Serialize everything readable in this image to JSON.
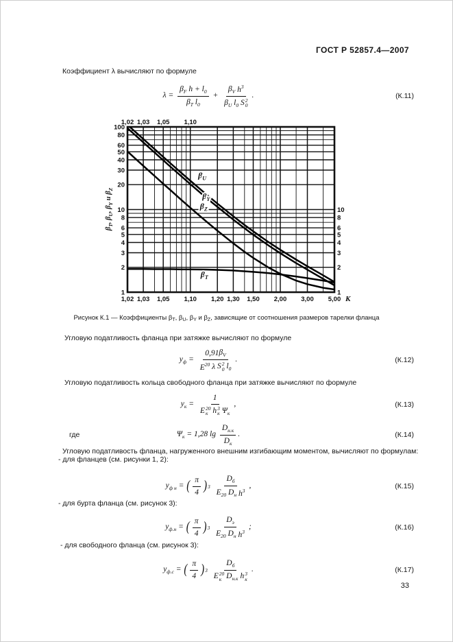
{
  "page": {
    "header": "ГОСТ Р 52857.4—2007",
    "number": "33"
  },
  "paragraphs": {
    "p1": "Коэффициент λ вычисляют по формуле",
    "p2": "Угловую податливость фланца при затяжке вычисляют по формуле",
    "p3": "Угловую податливость кольца свободного фланца при затяжке вычисляют по формуле",
    "p4": "где",
    "p5": "Угловую податливость фланца, нагруженного внешним изгибающим моментом, вычисляют по формулам:",
    "p6": "- для фланцев (см. рисунки 1, 2):",
    "p7": "- для бурта фланца (см. рисунок 3):",
    "p8": "- для свободного фланца (см. рисунок 3):"
  },
  "figure": {
    "caption_tokens": [
      {
        "t": "Рисунок К.1 — Коэффициенты "
      },
      {
        "b": "β",
        "sub": "Т"
      },
      {
        "t": ", "
      },
      {
        "b": "β",
        "sub": "U"
      },
      {
        "t": ", "
      },
      {
        "b": "β",
        "sub": "Y"
      },
      {
        "t": " и "
      },
      {
        "b": "β",
        "sub": "Z"
      },
      {
        "t": ", зависящие от соотношения размеров тарелки фланца"
      }
    ]
  },
  "formulas": {
    "k11": {
      "number": "(К.11)",
      "tokens": [
        {
          "t": "λ = "
        },
        {
          "frac": {
            "n": [
              {
                "b": "β",
                "sub": "F"
              },
              {
                "t": " h + "
              },
              {
                "b": "l",
                "sub": "0"
              }
            ],
            "d": [
              {
                "b": "β",
                "sub": "Т"
              },
              {
                "t": " "
              },
              {
                "b": "l",
                "sub": "0"
              }
            ]
          }
        },
        {
          "t": " + "
        },
        {
          "frac": {
            "n": [
              {
                "b": "β",
                "sub": "V"
              },
              {
                "t": " "
              },
              {
                "b": "h",
                "sup": "3"
              }
            ],
            "d": [
              {
                "b": "β",
                "sub": "U"
              },
              {
                "t": " "
              },
              {
                "b": "l",
                "sub": "0"
              },
              {
                "t": " "
              },
              {
                "b": "S",
                "sub": "0",
                "sup": "2"
              }
            ]
          }
        },
        {
          "t": "."
        }
      ]
    },
    "k12": {
      "number": "(К.12)",
      "tokens": [
        {
          "b": "y",
          "sub": "ф"
        },
        {
          "t": " = "
        },
        {
          "frac": {
            "n": [
              {
                "t": "0,91"
              },
              {
                "b": "β",
                "sub": "V"
              }
            ],
            "d": [
              {
                "b": "E",
                "sup": "20"
              },
              {
                "t": " λ "
              },
              {
                "b": "S",
                "sub": "0",
                "sup": "2"
              },
              {
                "t": " "
              },
              {
                "b": "l",
                "sub": "0"
              }
            ]
          }
        },
        {
          "t": "."
        }
      ]
    },
    "k13": {
      "number": "(К.13)",
      "tokens": [
        {
          "b": "y",
          "sub": "к"
        },
        {
          "t": " = "
        },
        {
          "frac": {
            "n": [
              {
                "t": "1"
              }
            ],
            "d": [
              {
                "b": "E",
                "sub": "к",
                "sup": "20"
              },
              {
                "t": " "
              },
              {
                "b": "h",
                "sub": "к",
                "sup": "3"
              },
              {
                "t": " "
              },
              {
                "b": "Ψ",
                "sub": "к"
              }
            ]
          }
        },
        {
          "t": ","
        }
      ]
    },
    "k14": {
      "number": "(К.14)",
      "tokens": [
        {
          "b": "Ψ",
          "sub": "к"
        },
        {
          "t": " = 1,28 lg "
        },
        {
          "frac": {
            "n": [
              {
                "b": "D",
                "sub": "н.к"
              }
            ],
            "d": [
              {
                "b": "D",
                "sub": "к"
              }
            ]
          }
        },
        {
          "t": "."
        }
      ]
    },
    "k15": {
      "number": "(К.15)",
      "tokens": [
        {
          "b": "y",
          "sub": "ф н"
        },
        {
          "t": " = "
        },
        {
          "big": "("
        },
        {
          "frac": {
            "n": [
              {
                "t": "π"
              }
            ],
            "d": [
              {
                "t": "4"
              }
            ]
          }
        },
        {
          "big": ")"
        },
        {
          "sup": "3"
        },
        {
          "t": " "
        },
        {
          "frac": {
            "n": [
              {
                "b": "D",
                "sub": "б"
              }
            ],
            "d": [
              {
                "b": "E",
                "sub": "20"
              },
              {
                "t": " "
              },
              {
                "b": "D",
                "sub": "н"
              },
              {
                "t": " "
              },
              {
                "b": "h",
                "sup": "3"
              }
            ]
          }
        },
        {
          "t": ","
        }
      ]
    },
    "k16": {
      "number": "(К.16)",
      "tokens": [
        {
          "b": "y",
          "sub": "ф.н"
        },
        {
          "t": " = "
        },
        {
          "big": "("
        },
        {
          "frac": {
            "n": [
              {
                "t": "π"
              }
            ],
            "d": [
              {
                "t": "4"
              }
            ]
          }
        },
        {
          "big": ")"
        },
        {
          "sup": "3"
        },
        {
          "t": " "
        },
        {
          "frac": {
            "n": [
              {
                "b": "D",
                "sub": "э"
              }
            ],
            "d": [
              {
                "b": "E",
                "sub": "20"
              },
              {
                "t": " "
              },
              {
                "b": "D",
                "sub": "н"
              },
              {
                "t": " "
              },
              {
                "b": "h",
                "sup": "3"
              }
            ]
          }
        },
        {
          "t": ";"
        }
      ]
    },
    "k17": {
      "number": "(К.17)",
      "tokens": [
        {
          "b": "y",
          "sub": "ф.с"
        },
        {
          "t": " = "
        },
        {
          "big": "("
        },
        {
          "frac": {
            "n": [
              {
                "t": "π"
              }
            ],
            "d": [
              {
                "t": "4"
              }
            ]
          }
        },
        {
          "big": ")"
        },
        {
          "sup": "3"
        },
        {
          "t": " "
        },
        {
          "frac": {
            "n": [
              {
                "b": "D",
                "sub": "б"
              }
            ],
            "d": [
              {
                "b": "E",
                "sub": "к",
                "sup": "20"
              },
              {
                "t": " "
              },
              {
                "b": "D",
                "sub": "н.к"
              },
              {
                "t": " "
              },
              {
                "b": "h",
                "sub": "к",
                "sup": "3"
              }
            ]
          }
        },
        {
          "t": "."
        }
      ]
    }
  },
  "chart_data": {
    "type": "line",
    "figure": "Рисунок К.1",
    "x_label": "К",
    "x_scale": "log(K-1)",
    "y_scale": "log",
    "x_range": [
      1.02,
      5.0
    ],
    "y_range": [
      1,
      100
    ],
    "x_ticks_bottom": [
      "1,02",
      "1,03",
      "1,05",
      "1,10",
      "1,20",
      "1,30",
      "1,50",
      "2,00",
      "3,00",
      "5,00"
    ],
    "x_ticks_top": [
      "1,02",
      "1,03",
      "1,05",
      "1,10"
    ],
    "y_ticks_left": [
      100,
      80,
      60,
      50,
      40,
      30,
      20,
      10,
      8,
      6,
      5,
      4,
      3,
      2,
      1
    ],
    "y_ticks_right": [
      10,
      8,
      6,
      5,
      4,
      3,
      2,
      1
    ],
    "x_gridlines": [
      1.02,
      1.03,
      1.04,
      1.05,
      1.06,
      1.07,
      1.08,
      1.09,
      1.1,
      1.2,
      1.3,
      1.4,
      1.5,
      1.6,
      1.7,
      1.8,
      1.9,
      2.0,
      2.5,
      3.0,
      4.0,
      5.0
    ],
    "y_gridlines": [
      1,
      2,
      3,
      4,
      5,
      6,
      7,
      8,
      9,
      10,
      20,
      30,
      40,
      50,
      60,
      70,
      80,
      90,
      100
    ],
    "y_label_tokens": [
      {
        "t": "β",
        "sub": "Т"
      },
      {
        "t": ", β",
        "sub": "U"
      },
      {
        "t": ", β",
        "sub": "Y"
      },
      {
        "t": " и β",
        "sub": "Z"
      }
    ],
    "x": [
      1.02,
      1.03,
      1.04,
      1.05,
      1.06,
      1.08,
      1.1,
      1.15,
      1.2,
      1.3,
      1.4,
      1.5,
      1.75,
      2.0,
      2.5,
      3.0,
      4.0,
      5.0
    ],
    "series": [
      {
        "name": "βU",
        "label_tokens": [
          {
            "t": "β",
            "sub": "U"
          }
        ],
        "label_at": {
          "x": 1.122,
          "y": 24
        },
        "values": [
          106,
          71.3,
          53.9,
          43.3,
          36.3,
          27.6,
          22.3,
          15.3,
          11.8,
          8.3,
          6.5,
          5.45,
          4.0,
          3.26,
          2.48,
          2.06,
          1.6,
          1.33
        ]
      },
      {
        "name": "βY",
        "label_tokens": [
          {
            "t": "β",
            "sub": "Y"
          }
        ],
        "label_at": {
          "x": 1.136,
          "y": 13.5
        },
        "values": [
          96.7,
          64.9,
          49.0,
          39.4,
          33.0,
          25.1,
          20.3,
          13.9,
          10.8,
          7.55,
          5.94,
          4.96,
          3.64,
          2.96,
          2.25,
          1.87,
          1.45,
          1.21
        ]
      },
      {
        "name": "βZ",
        "label_tokens": [
          {
            "t": "β",
            "sub": "Z"
          }
        ],
        "label_at": {
          "x": 1.128,
          "y": 10.2
        },
        "values": [
          50.5,
          33.8,
          25.5,
          20.5,
          17.2,
          13.0,
          10.5,
          7.2,
          5.55,
          3.9,
          3.08,
          2.6,
          1.97,
          1.67,
          1.38,
          1.25,
          1.13,
          1.08
        ]
      },
      {
        "name": "βT",
        "label_tokens": [
          {
            "t": "β",
            "sub": "Т"
          }
        ],
        "label_at": {
          "x": 1.13,
          "y": 1.52
        },
        "values": [
          1.91,
          1.91,
          1.9,
          1.9,
          1.9,
          1.89,
          1.89,
          1.88,
          1.86,
          1.83,
          1.79,
          1.76,
          1.7,
          1.64,
          1.55,
          1.48,
          1.38,
          1.31
        ]
      }
    ]
  }
}
